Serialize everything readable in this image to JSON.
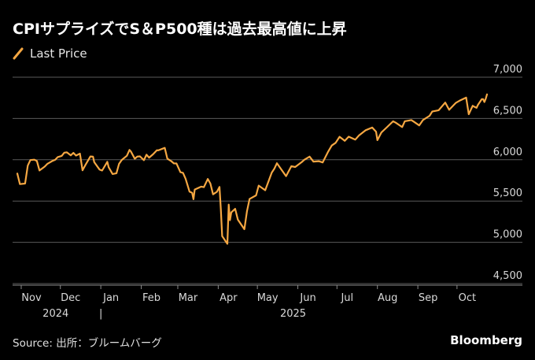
{
  "title": "CPIサプライズでS＆P500種は過去最高値に上昇",
  "source": "Source: 出所：ブルームバーグ",
  "brand": "Bloomberg",
  "colors": {
    "background": "#000000",
    "line": "#f5a742",
    "grid": "#5a5a5a",
    "axis_text": "#d9d9d9"
  },
  "chart_data": {
    "type": "line",
    "title": "CPIサプライズでS＆P500種は過去最高値に上昇",
    "xlabel": "",
    "ylabel": "",
    "ylim": [
      4500,
      7000
    ],
    "y_ticks": [
      "4,500",
      "5,000",
      "5,500",
      "6,000",
      "6,500",
      "7,000"
    ],
    "y_tick_values": [
      4500,
      5000,
      5500,
      6000,
      6500,
      7000
    ],
    "x_range": [
      "2024-10-29",
      "2025-10-24"
    ],
    "x_ticks": [
      {
        "label": "Nov",
        "date": "2024-11-01"
      },
      {
        "label": "Dec",
        "date": "2024-12-01"
      },
      {
        "label": "Jan",
        "date": "2025-01-01"
      },
      {
        "label": "Feb",
        "date": "2025-02-01"
      },
      {
        "label": "Mar",
        "date": "2025-03-01"
      },
      {
        "label": "Apr",
        "date": "2025-04-01"
      },
      {
        "label": "May",
        "date": "2025-05-01"
      },
      {
        "label": "Jun",
        "date": "2025-06-01"
      },
      {
        "label": "Jul",
        "date": "2025-07-01"
      },
      {
        "label": "Aug",
        "date": "2025-08-01"
      },
      {
        "label": "Sep",
        "date": "2025-09-01"
      },
      {
        "label": "Oct",
        "date": "2025-10-01"
      }
    ],
    "year_labels": [
      {
        "label": "2024",
        "date": "2024-12-01"
      },
      {
        "label": "|",
        "date": "2025-01-01"
      },
      {
        "label": "2025",
        "date": "2025-06-01"
      }
    ],
    "grid": true,
    "legend_position": "top-left",
    "series": [
      {
        "name": "Last Price",
        "points": [
          [
            "2024-10-29",
            5833
          ],
          [
            "2024-10-31",
            5705
          ],
          [
            "2024-11-04",
            5712
          ],
          [
            "2024-11-06",
            5929
          ],
          [
            "2024-11-08",
            5996
          ],
          [
            "2024-11-11",
            6001
          ],
          [
            "2024-11-13",
            5985
          ],
          [
            "2024-11-15",
            5870
          ],
          [
            "2024-11-19",
            5917
          ],
          [
            "2024-11-21",
            5949
          ],
          [
            "2024-11-25",
            5987
          ],
          [
            "2024-11-27",
            5999
          ],
          [
            "2024-11-29",
            6032
          ],
          [
            "2024-12-02",
            6047
          ],
          [
            "2024-12-04",
            6086
          ],
          [
            "2024-12-06",
            6090
          ],
          [
            "2024-12-09",
            6053
          ],
          [
            "2024-12-11",
            6084
          ],
          [
            "2024-12-13",
            6051
          ],
          [
            "2024-12-16",
            6074
          ],
          [
            "2024-12-18",
            5872
          ],
          [
            "2024-12-20",
            5930
          ],
          [
            "2024-12-24",
            6040
          ],
          [
            "2024-12-26",
            6037
          ],
          [
            "2024-12-27",
            5970
          ],
          [
            "2024-12-31",
            5882
          ],
          [
            "2025-01-02",
            5869
          ],
          [
            "2025-01-06",
            5975
          ],
          [
            "2025-01-07",
            5909
          ],
          [
            "2025-01-10",
            5827
          ],
          [
            "2025-01-13",
            5837
          ],
          [
            "2025-01-15",
            5950
          ],
          [
            "2025-01-17",
            5997
          ],
          [
            "2025-01-21",
            6049
          ],
          [
            "2025-01-23",
            6119
          ],
          [
            "2025-01-24",
            6101
          ],
          [
            "2025-01-27",
            6012
          ],
          [
            "2025-01-29",
            6039
          ],
          [
            "2025-01-31",
            6041
          ],
          [
            "2025-02-03",
            5994
          ],
          [
            "2025-02-05",
            6061
          ],
          [
            "2025-02-07",
            6026
          ],
          [
            "2025-02-10",
            6066
          ],
          [
            "2025-02-13",
            6115
          ],
          [
            "2025-02-14",
            6114
          ],
          [
            "2025-02-19",
            6144
          ],
          [
            "2025-02-21",
            6013
          ],
          [
            "2025-02-24",
            5983
          ],
          [
            "2025-02-26",
            5956
          ],
          [
            "2025-02-28",
            5955
          ],
          [
            "2025-03-03",
            5849
          ],
          [
            "2025-03-05",
            5842
          ],
          [
            "2025-03-07",
            5770
          ],
          [
            "2025-03-10",
            5614
          ],
          [
            "2025-03-12",
            5599
          ],
          [
            "2025-03-13",
            5522
          ],
          [
            "2025-03-14",
            5639
          ],
          [
            "2025-03-19",
            5675
          ],
          [
            "2025-03-21",
            5668
          ],
          [
            "2025-03-24",
            5767
          ],
          [
            "2025-03-26",
            5712
          ],
          [
            "2025-03-28",
            5581
          ],
          [
            "2025-03-31",
            5612
          ],
          [
            "2025-04-02",
            5671
          ],
          [
            "2025-04-03",
            5397
          ],
          [
            "2025-04-04",
            5074
          ],
          [
            "2025-04-08",
            4982
          ],
          [
            "2025-04-09",
            5457
          ],
          [
            "2025-04-10",
            5268
          ],
          [
            "2025-04-11",
            5363
          ],
          [
            "2025-04-14",
            5406
          ],
          [
            "2025-04-16",
            5276
          ],
          [
            "2025-04-21",
            5158
          ],
          [
            "2025-04-23",
            5376
          ],
          [
            "2025-04-25",
            5525
          ],
          [
            "2025-04-30",
            5569
          ],
          [
            "2025-05-02",
            5687
          ],
          [
            "2025-05-07",
            5631
          ],
          [
            "2025-05-12",
            5844
          ],
          [
            "2025-05-14",
            5892
          ],
          [
            "2025-05-16",
            5958
          ],
          [
            "2025-05-21",
            5845
          ],
          [
            "2025-05-23",
            5802
          ],
          [
            "2025-05-27",
            5922
          ],
          [
            "2025-05-30",
            5912
          ],
          [
            "2025-06-04",
            5971
          ],
          [
            "2025-06-06",
            6000
          ],
          [
            "2025-06-10",
            6038
          ],
          [
            "2025-06-13",
            5977
          ],
          [
            "2025-06-17",
            5983
          ],
          [
            "2025-06-20",
            5968
          ],
          [
            "2025-06-24",
            6092
          ],
          [
            "2025-06-27",
            6173
          ],
          [
            "2025-06-30",
            6205
          ],
          [
            "2025-07-03",
            6279
          ],
          [
            "2025-07-07",
            6229
          ],
          [
            "2025-07-10",
            6280
          ],
          [
            "2025-07-15",
            6243
          ],
          [
            "2025-07-18",
            6297
          ],
          [
            "2025-07-23",
            6358
          ],
          [
            "2025-07-28",
            6390
          ],
          [
            "2025-07-31",
            6339
          ],
          [
            "2025-08-01",
            6238
          ],
          [
            "2025-08-04",
            6330
          ],
          [
            "2025-08-08",
            6389
          ],
          [
            "2025-08-13",
            6466
          ],
          [
            "2025-08-15",
            6449
          ],
          [
            "2025-08-20",
            6396
          ],
          [
            "2025-08-22",
            6467
          ],
          [
            "2025-08-27",
            6481
          ],
          [
            "2025-08-29",
            6460
          ],
          [
            "2025-09-02",
            6416
          ],
          [
            "2025-09-05",
            6482
          ],
          [
            "2025-09-10",
            6532
          ],
          [
            "2025-09-12",
            6584
          ],
          [
            "2025-09-17",
            6600
          ],
          [
            "2025-09-22",
            6693
          ],
          [
            "2025-09-25",
            6605
          ],
          [
            "2025-09-30",
            6688
          ],
          [
            "2025-10-03",
            6716
          ],
          [
            "2025-10-08",
            6753
          ],
          [
            "2025-10-10",
            6552
          ],
          [
            "2025-10-13",
            6654
          ],
          [
            "2025-10-14",
            6644
          ],
          [
            "2025-10-16",
            6629
          ],
          [
            "2025-10-17",
            6664
          ],
          [
            "2025-10-20",
            6735
          ],
          [
            "2025-10-21",
            6735
          ],
          [
            "2025-10-22",
            6699
          ],
          [
            "2025-10-23",
            6738
          ],
          [
            "2025-10-24",
            6792
          ]
        ]
      }
    ]
  }
}
